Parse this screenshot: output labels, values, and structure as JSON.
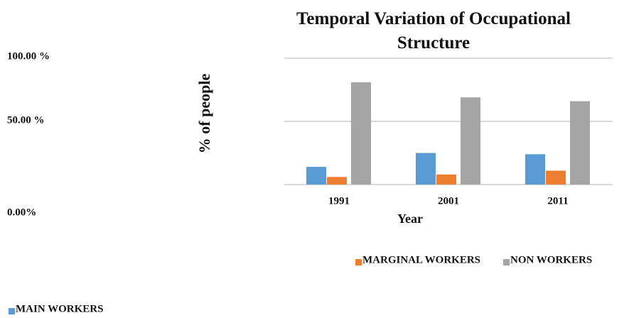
{
  "chart_data": {
    "type": "bar",
    "title": "Temporal Variation of Occupational Structure",
    "x_label": "Year",
    "y_label": "% of people",
    "categories": [
      "1991",
      "2001",
      "2011"
    ],
    "series": [
      {
        "name": "MAIN WORKERS",
        "color": "#5b9bd5",
        "values": [
          14,
          25,
          24
        ]
      },
      {
        "name": "MARGINAL WORKERS",
        "color": "#ed7d31",
        "values": [
          6,
          8,
          11
        ]
      },
      {
        "name": "NON WORKERS",
        "color": "#a5a5a5",
        "values": [
          81,
          69,
          66
        ]
      }
    ],
    "ylim": [
      0,
      100
    ],
    "yticks": [
      {
        "value": 0,
        "label": "0.00%"
      },
      {
        "value": 50,
        "label": "50.00 %"
      },
      {
        "value": 100,
        "label": "100.00 %"
      }
    ],
    "grid": true
  }
}
